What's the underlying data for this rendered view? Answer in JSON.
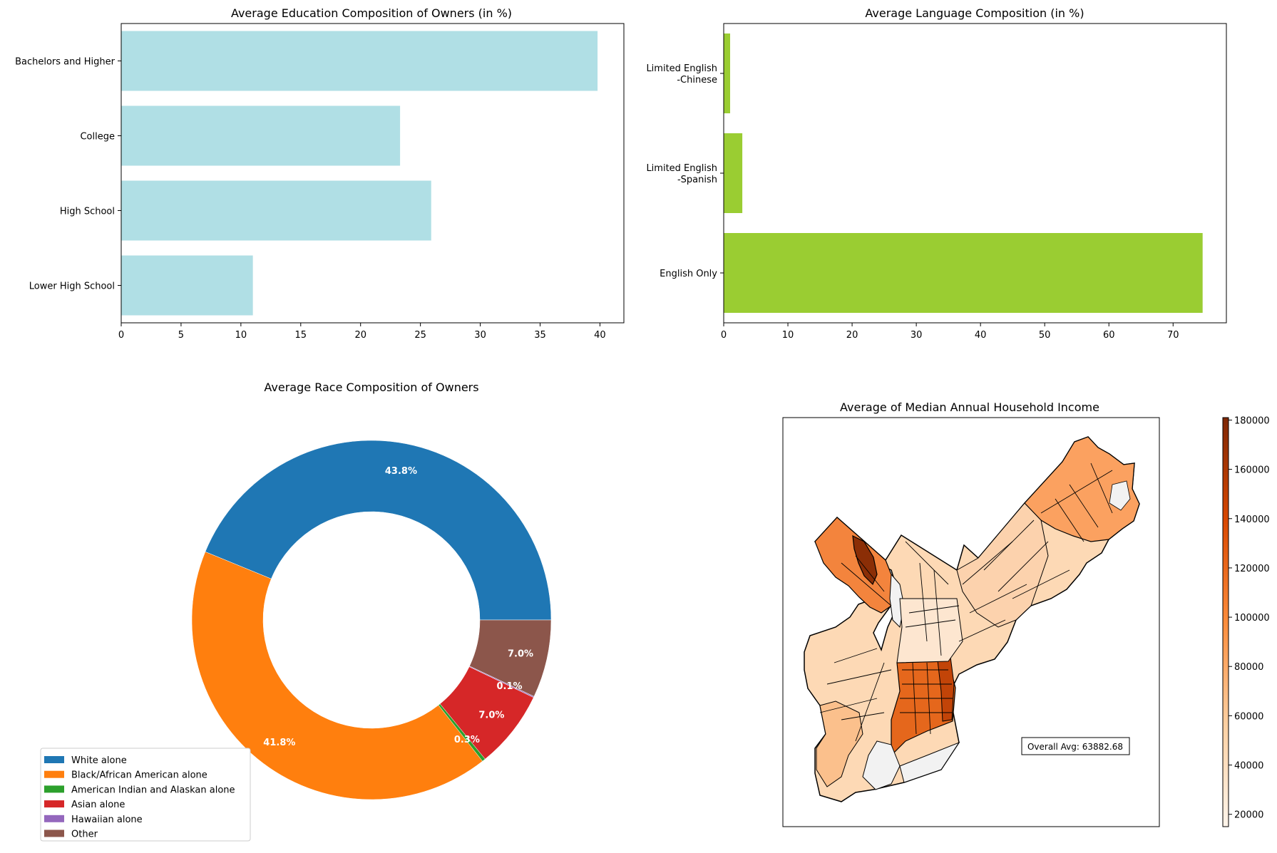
{
  "chart_data": [
    {
      "type": "bar",
      "orientation": "horizontal",
      "title": "Average Education Composition of Owners (in %)",
      "categories": [
        "Bachelors and Higher",
        "College",
        "High School",
        "Lower High School"
      ],
      "values": [
        39.8,
        23.3,
        25.9,
        11.0
      ],
      "xlim": [
        0,
        42
      ],
      "xticks": [
        "0",
        "5",
        "10",
        "15",
        "20",
        "25",
        "30",
        "35",
        "40"
      ],
      "color": "#b0dfe5"
    },
    {
      "type": "bar",
      "orientation": "horizontal",
      "title": "Average Language Composition (in %)",
      "categories": [
        {
          "line1": "Limited English",
          "line2": "-Chinese"
        },
        {
          "line1": "Limited English",
          "line2": "-Spanish"
        },
        {
          "line1": "English Only",
          "line2": ""
        }
      ],
      "values": [
        1.0,
        2.9,
        74.6
      ],
      "xlim": [
        0,
        78.3
      ],
      "xticks": [
        "0",
        "10",
        "20",
        "30",
        "40",
        "50",
        "60",
        "70"
      ],
      "color": "#9acd32"
    },
    {
      "type": "pie",
      "donut": true,
      "title": "Average Race Composition of Owners",
      "labels": [
        "White alone",
        "Black/African American alone",
        "American Indian and Alaskan alone",
        "Asian alone",
        "Hawaiian alone",
        "Other"
      ],
      "values": [
        43.8,
        41.8,
        0.3,
        7.0,
        0.1,
        7.0
      ],
      "value_labels": [
        "43.8%",
        "41.8%",
        "0.3%",
        "7.0%",
        "0.1%",
        "7.0%"
      ],
      "colors": [
        "#1f77b4",
        "#ff7f0e",
        "#2ca02c",
        "#d62728",
        "#9467bd",
        "#8c564b"
      ],
      "legend_placement": "lower-left"
    },
    {
      "type": "choropleth",
      "title": "Average of Median Annual Household Income",
      "annotation": "Overall Avg: 63882.68",
      "colorbar_range": [
        15000,
        181000
      ],
      "colorbar_ticks": [
        "20000",
        "40000",
        "60000",
        "80000",
        "100000",
        "120000",
        "140000",
        "160000",
        "180000"
      ],
      "colormap": "Oranges"
    }
  ]
}
